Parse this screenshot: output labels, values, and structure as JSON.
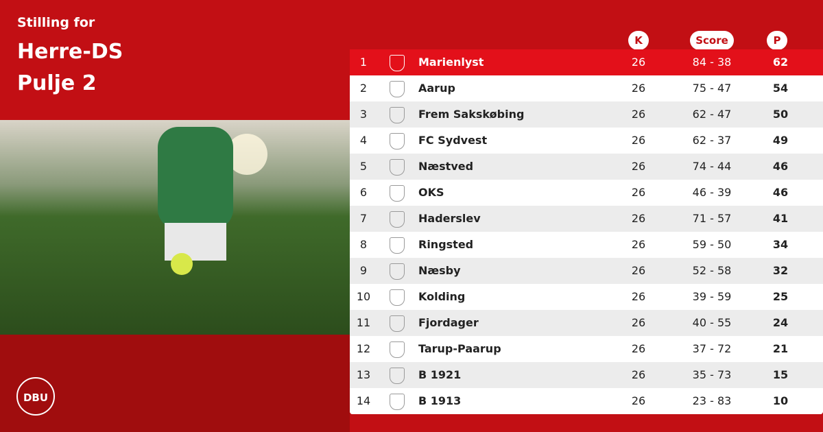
{
  "header": {
    "subtitle": "Stilling for",
    "title_lines": [
      "Herre-DS",
      "Pulje 2"
    ]
  },
  "logo": {
    "text": "DBU"
  },
  "table": {
    "columns": [
      "K",
      "Score",
      "P"
    ],
    "rows": [
      [
        1,
        "Marienlyst",
        26,
        "84 - 38",
        62
      ],
      [
        2,
        "Aarup",
        26,
        "75 - 47",
        54
      ],
      [
        3,
        "Frem Sakskøbing",
        26,
        "62 - 47",
        50
      ],
      [
        4,
        "FC Sydvest",
        26,
        "62 - 37",
        49
      ],
      [
        5,
        "Næstved",
        26,
        "74 - 44",
        46
      ],
      [
        6,
        "OKS",
        26,
        "46 - 39",
        46
      ],
      [
        7,
        "Haderslev",
        26,
        "71 - 57",
        41
      ],
      [
        8,
        "Ringsted",
        26,
        "59 - 50",
        34
      ],
      [
        9,
        "Næsby",
        26,
        "52 - 58",
        32
      ],
      [
        10,
        "Kolding",
        26,
        "39 - 59",
        25
      ],
      [
        11,
        "Fjordager",
        26,
        "40 - 55",
        24
      ],
      [
        12,
        "Tarup-Paarup",
        26,
        "37 - 72",
        21
      ],
      [
        13,
        "B 1921",
        26,
        "35 - 73",
        15
      ],
      [
        14,
        "B 1913",
        26,
        "23 - 83",
        10
      ]
    ]
  }
}
